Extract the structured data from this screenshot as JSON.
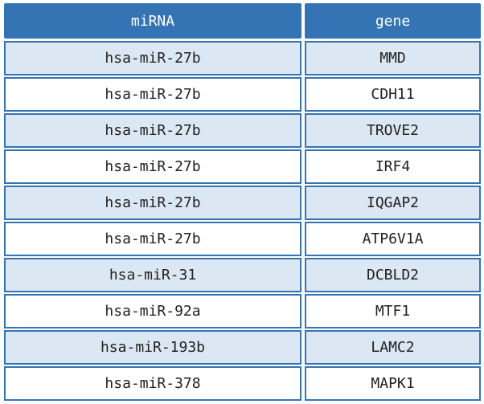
{
  "table": {
    "header": [
      "miRNA",
      "gene"
    ],
    "rows": [
      [
        "hsa-miR-27b",
        "MMD"
      ],
      [
        "hsa-miR-27b",
        "CDH11"
      ],
      [
        "hsa-miR-27b",
        "TROVE2"
      ],
      [
        "hsa-miR-27b",
        "IRF4"
      ],
      [
        "hsa-miR-27b",
        "IQGAP2"
      ],
      [
        "hsa-miR-27b",
        "ATP6V1A"
      ],
      [
        "hsa-miR-31",
        "DCBLD2"
      ],
      [
        "hsa-miR-92a",
        "MTF1"
      ],
      [
        "hsa-miR-193b",
        "LAMC2"
      ],
      [
        "hsa-miR-378",
        "MAPK1"
      ]
    ]
  }
}
